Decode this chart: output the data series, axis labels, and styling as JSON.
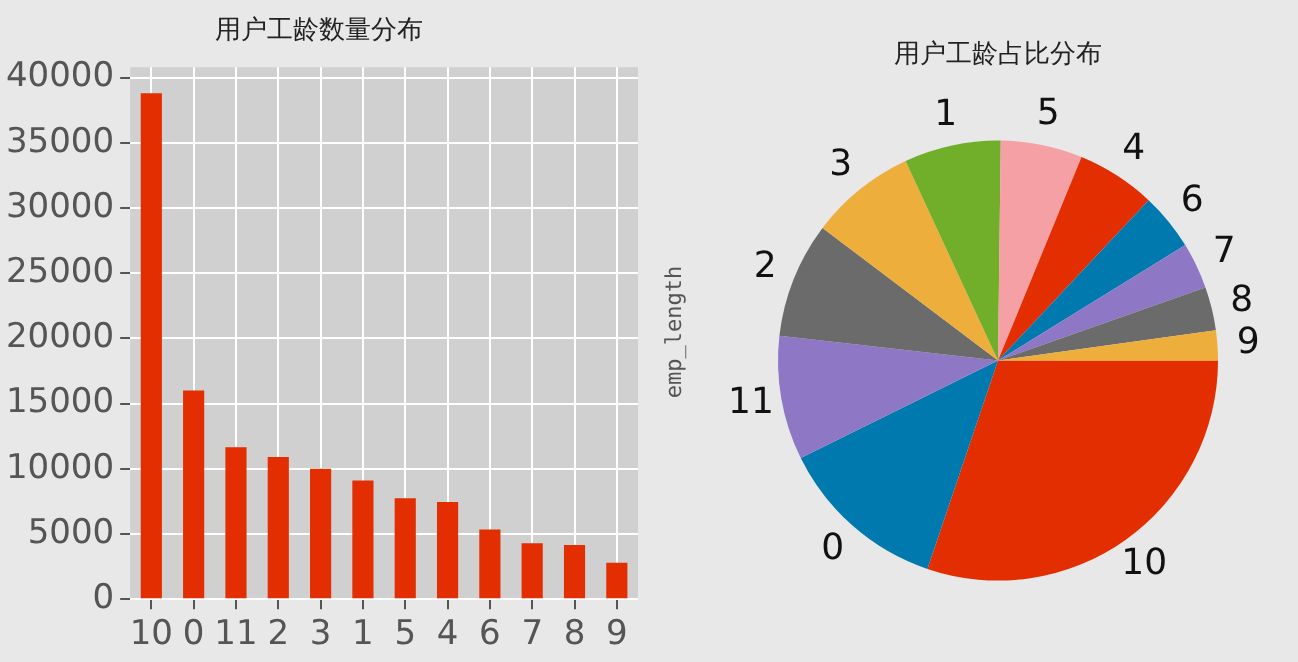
{
  "chart_data": [
    {
      "type": "bar",
      "title": "用户工龄数量分布",
      "categories": [
        "10",
        "0",
        "11",
        "2",
        "3",
        "1",
        "5",
        "4",
        "6",
        "7",
        "8",
        "9"
      ],
      "values": [
        38800,
        16000,
        11650,
        10900,
        10000,
        9100,
        7750,
        7450,
        5350,
        4300,
        4150,
        2800
      ],
      "color": "#e22e00",
      "ylim": [
        0,
        40800
      ],
      "yticks": [
        0,
        5000,
        10000,
        15000,
        20000,
        25000,
        30000,
        35000,
        40000
      ],
      "grid": true,
      "legend": false
    },
    {
      "type": "pie",
      "title": "用户工龄占比分布",
      "ylabel": "emp_length",
      "categories": [
        "10",
        "0",
        "11",
        "2",
        "3",
        "1",
        "5",
        "4",
        "6",
        "7",
        "8",
        "9"
      ],
      "values": [
        30.2,
        12.5,
        9.1,
        8.5,
        7.8,
        7.1,
        6.0,
        5.8,
        4.2,
        3.4,
        3.2,
        2.2
      ],
      "colors": [
        "#e22e00",
        "#0079ae",
        "#8e78c5",
        "#6b6b6b",
        "#eeae3c",
        "#71ae29",
        "#f4a0a4",
        "#e22e00",
        "#0079ae",
        "#8e78c5",
        "#6b6b6b",
        "#eeae3c"
      ],
      "legend": false
    }
  ]
}
